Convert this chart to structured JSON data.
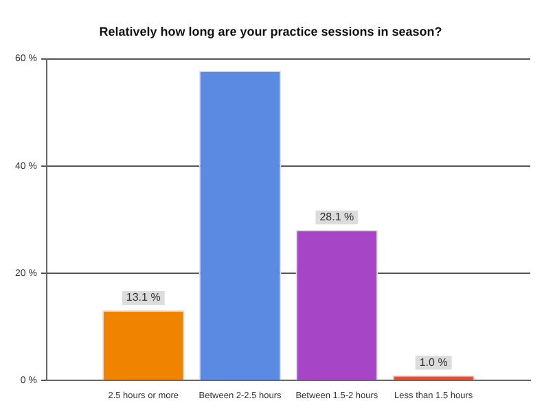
{
  "chart_data": {
    "type": "bar",
    "title": "Relatively how long are your practice sessions in season?",
    "categories": [
      "2.5 hours or more",
      "Between 2-2.5 hours",
      "Between 1.5-2 hours",
      "Less than 1.5 hours"
    ],
    "values": [
      13.1,
      57.8,
      28.1,
      1.0
    ],
    "colors": [
      "#f08400",
      "#5b8ae2",
      "#a646c6",
      "#ec4f30"
    ],
    "value_labels": [
      "13.1 %",
      null,
      "28.1 %",
      "1.0 %"
    ],
    "ylim": [
      0,
      60
    ],
    "yticks": [
      {
        "value": 0,
        "label": "0 %"
      },
      {
        "value": 20,
        "label": "20 %"
      },
      {
        "value": 40,
        "label": "40 %"
      },
      {
        "value": 60,
        "label": "60 %"
      }
    ],
    "grid": "y",
    "legend": false
  }
}
